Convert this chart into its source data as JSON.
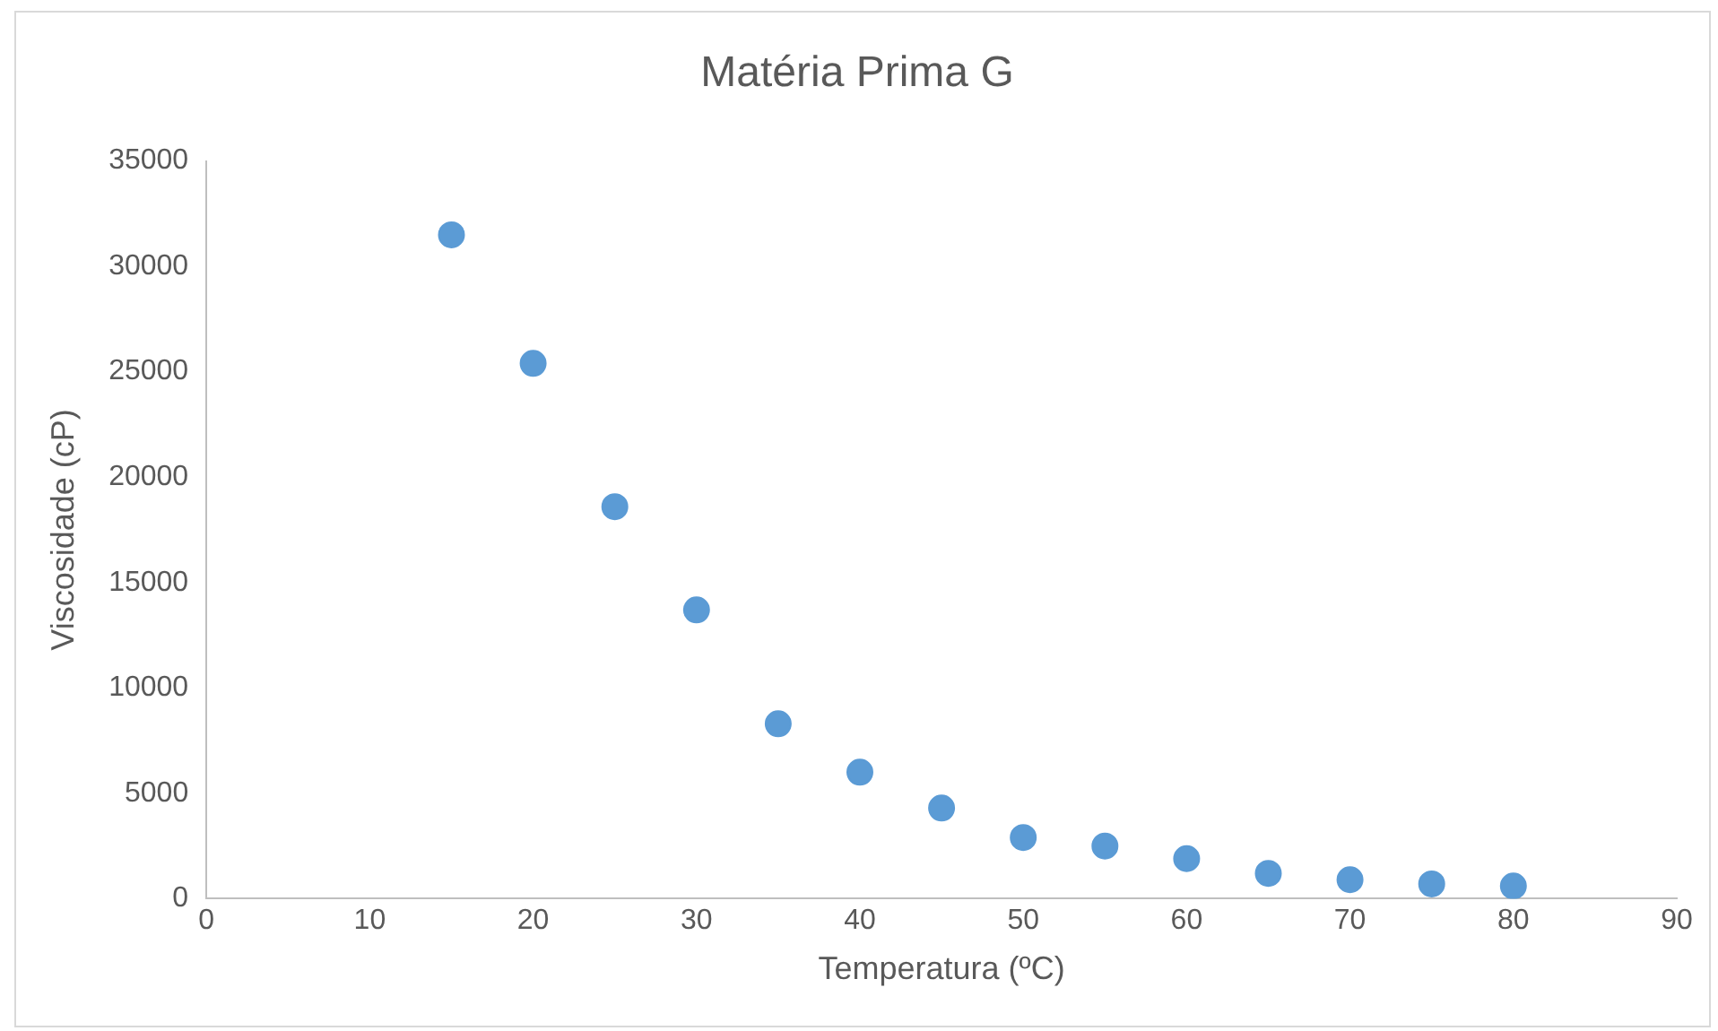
{
  "chart_data": {
    "type": "scatter",
    "title": "Matéria Prima G",
    "xlabel": "Temperatura (ºC)",
    "ylabel": "Viscosidade (cP)",
    "x": [
      15,
      20,
      25,
      30,
      35,
      40,
      45,
      50,
      55,
      60,
      65,
      70,
      75,
      80
    ],
    "series": [
      {
        "color": "#5b9bd5",
        "values": [
          31500,
          25400,
          18600,
          13700,
          8300,
          6000,
          4300,
          2900,
          2500,
          1900,
          1200,
          900,
          700,
          600
        ]
      }
    ],
    "xlim": [
      0,
      90
    ],
    "xticks": [
      0,
      10,
      20,
      30,
      40,
      50,
      60,
      70,
      80,
      90
    ],
    "ylim": [
      0,
      35000
    ],
    "yticks": [
      0,
      5000,
      10000,
      15000,
      20000,
      25000,
      30000,
      35000
    ],
    "grid": false,
    "legend": false,
    "marker": "circle"
  }
}
